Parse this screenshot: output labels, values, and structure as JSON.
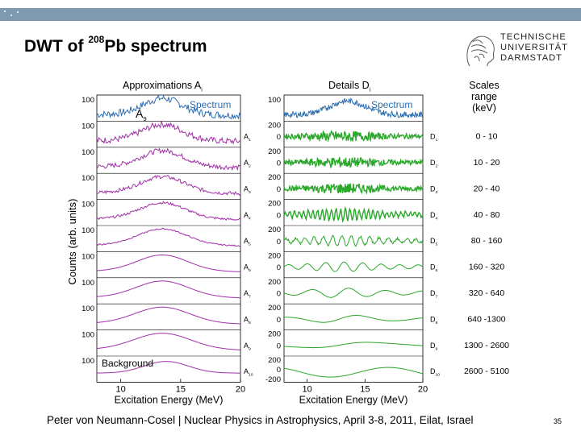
{
  "slide": {
    "title_prefix": "DWT of ",
    "title_sup": "208",
    "title_suffix": "Pb spectrum",
    "footer": "Peter von Neumann-Cosel | Nuclear Physics in Astrophysics, April 3-8, 2011, Eilat, Israel",
    "page_number": "35",
    "logo_lines": [
      "TECHNISCHE",
      "UNIVERSITÄT",
      "DARMSTADT"
    ],
    "accent_color": "#7e9ab0"
  },
  "chart_data": {
    "type": "line",
    "title": "",
    "ylabel": "Counts (arb. units)",
    "left_panel": {
      "title": "Approximations A",
      "title_sub": "i",
      "xlabel": "Excitation Energy (MeV)",
      "xlim": [
        8,
        20
      ],
      "x_ticks": [
        "10",
        "15",
        "20"
      ],
      "first_row_legend": "Spectrum",
      "overlay_label": "A",
      "overlay_label_sub": "9",
      "bottom_row_legend": "Background",
      "rows": [
        {
          "label": "",
          "label_sub": "",
          "y_tick": "100",
          "color": "#2a6db0"
        },
        {
          "label": "A",
          "label_sub": "1",
          "y_tick": "100",
          "color": "#a12ea8"
        },
        {
          "label": "A",
          "label_sub": "2",
          "y_tick": "100",
          "color": "#a12ea8"
        },
        {
          "label": "A",
          "label_sub": "3",
          "y_tick": "100",
          "color": "#a12ea8"
        },
        {
          "label": "A",
          "label_sub": "4",
          "y_tick": "100",
          "color": "#a12ea8"
        },
        {
          "label": "A",
          "label_sub": "5",
          "y_tick": "100",
          "color": "#a12ea8"
        },
        {
          "label": "A",
          "label_sub": "6",
          "y_tick": "100",
          "color": "#a12ea8"
        },
        {
          "label": "A",
          "label_sub": "7",
          "y_tick": "100",
          "color": "#a12ea8"
        },
        {
          "label": "A",
          "label_sub": "8",
          "y_tick": "100",
          "color": "#a12ea8"
        },
        {
          "label": "A",
          "label_sub": "9",
          "y_tick": "100",
          "color": "#a12ea8"
        },
        {
          "label": "A",
          "label_sub": "10",
          "y_tick": "100",
          "color": "#a12ea8"
        }
      ]
    },
    "right_panel": {
      "title": "Details D",
      "title_sub": "i",
      "xlabel": "Excitation Energy (MeV)",
      "xlim": [
        8,
        20
      ],
      "x_ticks": [
        "10",
        "15",
        "20"
      ],
      "first_row_legend": "Spectrum",
      "first_row_tick": "100",
      "rows": [
        {
          "label": "D",
          "label_sub": "1",
          "scale": "0 - 10"
        },
        {
          "label": "D",
          "label_sub": "2",
          "scale": "10 - 20"
        },
        {
          "label": "D",
          "label_sub": "3",
          "scale": "20 - 40"
        },
        {
          "label": "D",
          "label_sub": "4",
          "scale": "40 - 80"
        },
        {
          "label": "D",
          "label_sub": "5",
          "scale": "80 - 160"
        },
        {
          "label": "D",
          "label_sub": "6",
          "scale": "160 - 320"
        },
        {
          "label": "D",
          "label_sub": "7",
          "scale": "320 - 640"
        },
        {
          "label": "D",
          "label_sub": "8",
          "scale": "640 -1300"
        },
        {
          "label": "D",
          "label_sub": "9",
          "scale": "1300 - 2600"
        },
        {
          "label": "D",
          "label_sub": "10",
          "scale": "2600 - 5100"
        }
      ],
      "detail_y_ticks": [
        "200",
        "0"
      ],
      "bottom_y_ticks": [
        "200",
        "0",
        "-200"
      ],
      "detail_color": "#2aa82a",
      "spectrum_color": "#2a6db0"
    },
    "scales_header": [
      "Scales",
      "range",
      "(keV)"
    ]
  }
}
